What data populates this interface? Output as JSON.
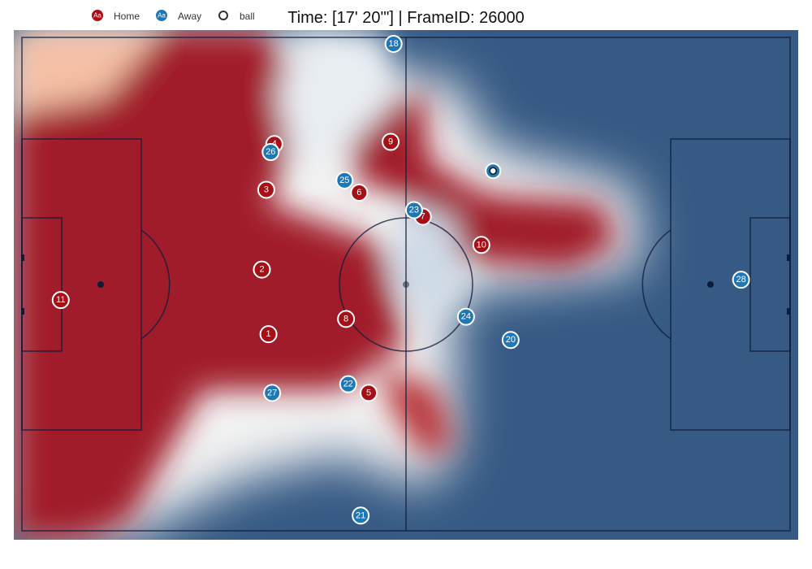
{
  "title": "Time: [17' 20'\"] | FrameID: 26000",
  "legend": [
    {
      "label": "Home",
      "glyph": "Aa",
      "color": "#a50f15"
    },
    {
      "label": "Away",
      "glyph": "Aa",
      "color": "#1f77b4"
    },
    {
      "label": "ball",
      "glyph": "",
      "color": "#ffffff"
    }
  ],
  "colors": {
    "home": "#a50f15",
    "away": "#1f77b4",
    "heat_high": "#a11a2a",
    "heat_mid": "#f7f7f7",
    "heat_low": "#365a84",
    "lines_on_heat": "#0d1b3a"
  },
  "chart_data": {
    "type": "scatter",
    "xlim": [
      0,
      105
    ],
    "ylim": [
      0,
      68
    ],
    "series": [
      {
        "name": "Home",
        "points": [
          {
            "label": "1",
            "x": 33.7,
            "y": 27.1
          },
          {
            "label": "2",
            "x": 32.8,
            "y": 36.0
          },
          {
            "label": "3",
            "x": 33.4,
            "y": 47.0
          },
          {
            "label": "4",
            "x": 34.5,
            "y": 53.3
          },
          {
            "label": "5",
            "x": 47.4,
            "y": 19.0
          },
          {
            "label": "6",
            "x": 46.1,
            "y": 46.6
          },
          {
            "label": "7",
            "x": 54.8,
            "y": 43.3
          },
          {
            "label": "8",
            "x": 44.3,
            "y": 29.2
          },
          {
            "label": "9",
            "x": 50.4,
            "y": 53.6
          },
          {
            "label": "10",
            "x": 62.8,
            "y": 39.4
          },
          {
            "label": "11",
            "x": 5.3,
            "y": 31.8
          }
        ]
      },
      {
        "name": "Away",
        "points": [
          {
            "label": "18",
            "x": 50.8,
            "y": 67.1
          },
          {
            "label": "20",
            "x": 66.8,
            "y": 26.3
          },
          {
            "label": "21",
            "x": 46.3,
            "y": 2.1
          },
          {
            "label": "22",
            "x": 44.6,
            "y": 20.2
          },
          {
            "label": "23",
            "x": 53.6,
            "y": 44.2
          },
          {
            "label": "24",
            "x": 60.7,
            "y": 29.5
          },
          {
            "label": "25",
            "x": 44.1,
            "y": 48.3
          },
          {
            "label": "26",
            "x": 34.0,
            "y": 52.2
          },
          {
            "label": "27",
            "x": 34.2,
            "y": 19.0
          },
          {
            "label": "28",
            "x": 98.3,
            "y": 34.6
          }
        ]
      },
      {
        "name": "ball",
        "points": [
          {
            "label": "",
            "x": 64.4,
            "y": 49.6
          }
        ]
      }
    ]
  }
}
